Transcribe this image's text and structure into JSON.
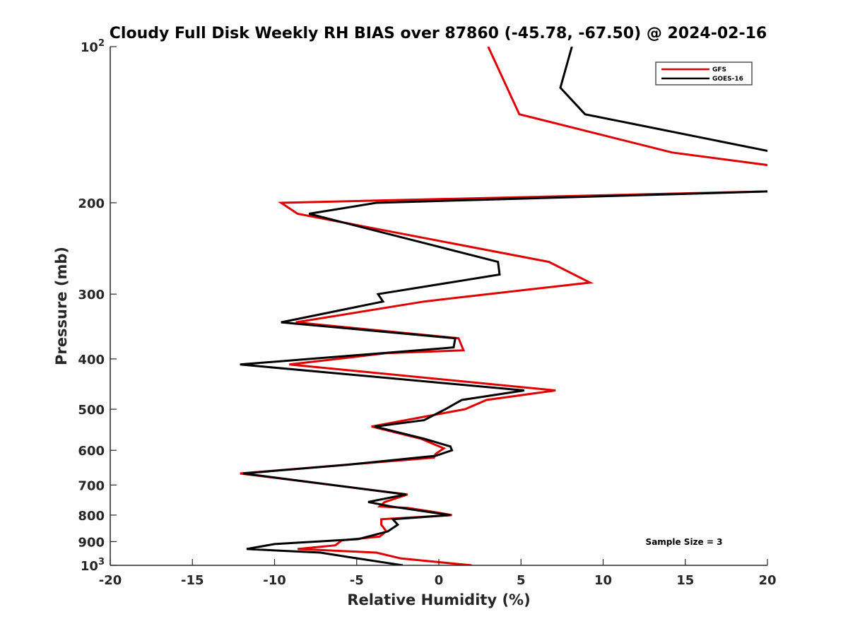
{
  "chart_data": {
    "type": "line",
    "title": "Cloudy Full Disk Weekly RH BIAS over 87860 (-45.78, -67.50) @ 2024-02-16",
    "xlabel": "Relative Humidity (%)",
    "ylabel": "Pressure (mb)",
    "xlim": [
      -20,
      20
    ],
    "ylim": [
      100,
      1000
    ],
    "y_scale": "log",
    "y_reversed": true,
    "grid": false,
    "legend_position": "top-right",
    "x_ticks": [
      -20,
      -15,
      -10,
      -5,
      0,
      5,
      10,
      15,
      20
    ],
    "x_tick_labels": [
      "-20",
      "-15",
      "-10",
      "-5",
      "0",
      "5",
      "10",
      "15",
      "20"
    ],
    "y_ticks": [
      100,
      200,
      300,
      400,
      500,
      600,
      700,
      800,
      900,
      1000
    ],
    "y_tick_labels": [
      {
        "base": "10",
        "sup": "2"
      },
      {
        "base": "200",
        "sup": ""
      },
      {
        "base": "300",
        "sup": ""
      },
      {
        "base": "400",
        "sup": ""
      },
      {
        "base": "500",
        "sup": ""
      },
      {
        "base": "600",
        "sup": ""
      },
      {
        "base": "700",
        "sup": ""
      },
      {
        "base": "800",
        "sup": ""
      },
      {
        "base": "900",
        "sup": ""
      },
      {
        "base": "10",
        "sup": "3"
      }
    ],
    "annotation": "Sample Size = 3",
    "series": [
      {
        "name": "GFS",
        "color": "#e00000",
        "x": [
          3.0,
          4.9,
          14.2,
          20.5,
          20.5,
          -9.6,
          -8.6,
          6.7,
          9.2,
          3.0,
          -0.9,
          -8.7,
          1.2,
          1.5,
          -3.2,
          -9.1,
          7.1,
          2.9,
          1.6,
          -1.3,
          -4.1,
          -1.1,
          0.3,
          -0.2,
          -0.3,
          -12.1,
          -1.9,
          -3.3,
          -3.6,
          -1.9,
          -0.2,
          0.8,
          -3.5,
          -3.5,
          -3.2,
          -3.6,
          -5.9,
          -6.3,
          -8.6,
          -3.8,
          -2.3,
          2.0
        ],
        "y": [
          100,
          135,
          160,
          170,
          190,
          200,
          210,
          260,
          285,
          300,
          310,
          340,
          365,
          385,
          390,
          410,
          460,
          480,
          500,
          520,
          540,
          570,
          595,
          610,
          620,
          665,
          730,
          755,
          770,
          775,
          790,
          800,
          815,
          835,
          860,
          880,
          895,
          915,
          930,
          945,
          970,
          1000
        ]
      },
      {
        "name": "GOES-16",
        "color": "#000000",
        "x": [
          8.1,
          7.4,
          8.9,
          20.5,
          20.5,
          -3.8,
          -7.9,
          -0.7,
          3.6,
          3.7,
          -3.7,
          -3.4,
          -9.6,
          1.0,
          0.9,
          -12.1,
          5.2,
          1.4,
          0.4,
          -0.9,
          -3.9,
          -0.9,
          0.7,
          0.8,
          -0.2,
          -5.6,
          -11.9,
          -2.0,
          -4.3,
          -2.9,
          -0.5,
          0.7,
          -2.8,
          -2.5,
          -3.1,
          -4.9,
          -10.0,
          -11.7,
          -7.2,
          -5.4,
          -2.2
        ],
        "y": [
          100,
          120,
          135,
          160,
          190,
          200,
          210,
          240,
          260,
          275,
          300,
          310,
          340,
          365,
          380,
          410,
          460,
          480,
          500,
          525,
          540,
          570,
          590,
          600,
          615,
          640,
          665,
          730,
          755,
          770,
          790,
          800,
          815,
          835,
          860,
          890,
          910,
          930,
          945,
          965,
          1000
        ]
      }
    ]
  }
}
